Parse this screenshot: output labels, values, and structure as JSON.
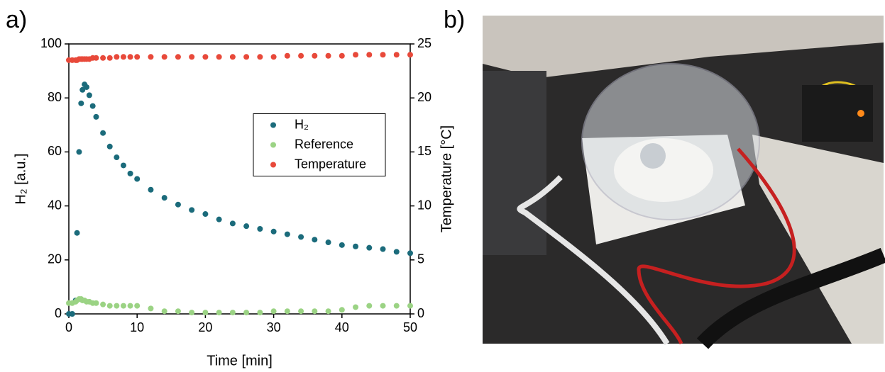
{
  "panels": [
    "a)",
    "b)"
  ],
  "chart_data": {
    "type": "scatter",
    "xlabel": "Time [min]",
    "ylabel": "H₂ [a.u.]",
    "y2label": "Temperature [°C]",
    "x": [
      0,
      0.5,
      1,
      1.2,
      1.5,
      1.8,
      2,
      2.3,
      2.6,
      3,
      3.5,
      4,
      5,
      6,
      7,
      8,
      9,
      10,
      12,
      14,
      16,
      18,
      20,
      22,
      24,
      26,
      28,
      30,
      32,
      34,
      36,
      38,
      40,
      42,
      44,
      46,
      48,
      50
    ],
    "series": [
      {
        "name": "H₂",
        "color": "#1b6b7b",
        "values": [
          0,
          0,
          5,
          30,
          60,
          78,
          83,
          85,
          84,
          81,
          77,
          73,
          67,
          62,
          58,
          55,
          52,
          50,
          46,
          43,
          40.5,
          38.5,
          37,
          35,
          33.5,
          32.5,
          31.5,
          30.5,
          29.5,
          28.5,
          27.5,
          26.5,
          25.5,
          25,
          24.5,
          24,
          23,
          22.5
        ]
      },
      {
        "name": "Reference",
        "color": "#9bd384",
        "values": [
          4,
          4,
          4.5,
          5,
          5.5,
          5.5,
          5,
          5,
          4.5,
          4.5,
          4,
          4,
          3.5,
          3,
          3,
          3,
          3,
          3,
          2,
          1,
          1,
          0.5,
          0.5,
          0.5,
          0.5,
          0.5,
          0.5,
          1,
          1,
          1,
          1,
          1,
          1.5,
          2.5,
          3,
          3,
          3,
          3
        ]
      },
      {
        "name": "Temperature",
        "color": "#e8493a",
        "axis": "y2",
        "values": [
          23.5,
          23.5,
          23.5,
          23.5,
          23.6,
          23.6,
          23.6,
          23.6,
          23.6,
          23.6,
          23.7,
          23.7,
          23.7,
          23.7,
          23.8,
          23.8,
          23.8,
          23.8,
          23.8,
          23.8,
          23.8,
          23.8,
          23.8,
          23.8,
          23.8,
          23.8,
          23.8,
          23.8,
          23.9,
          23.9,
          23.9,
          23.9,
          23.9,
          24,
          24,
          24,
          24,
          24
        ]
      }
    ],
    "xlim": [
      0,
      50
    ],
    "xticks": [
      0,
      10,
      20,
      30,
      40,
      50
    ],
    "ylim": [
      0,
      100
    ],
    "yticks": [
      0,
      20,
      40,
      60,
      80,
      100
    ],
    "y2lim": [
      0,
      25
    ],
    "y2ticks": [
      0,
      5,
      10,
      15,
      20,
      25
    ],
    "grid": false,
    "legend": "right"
  }
}
